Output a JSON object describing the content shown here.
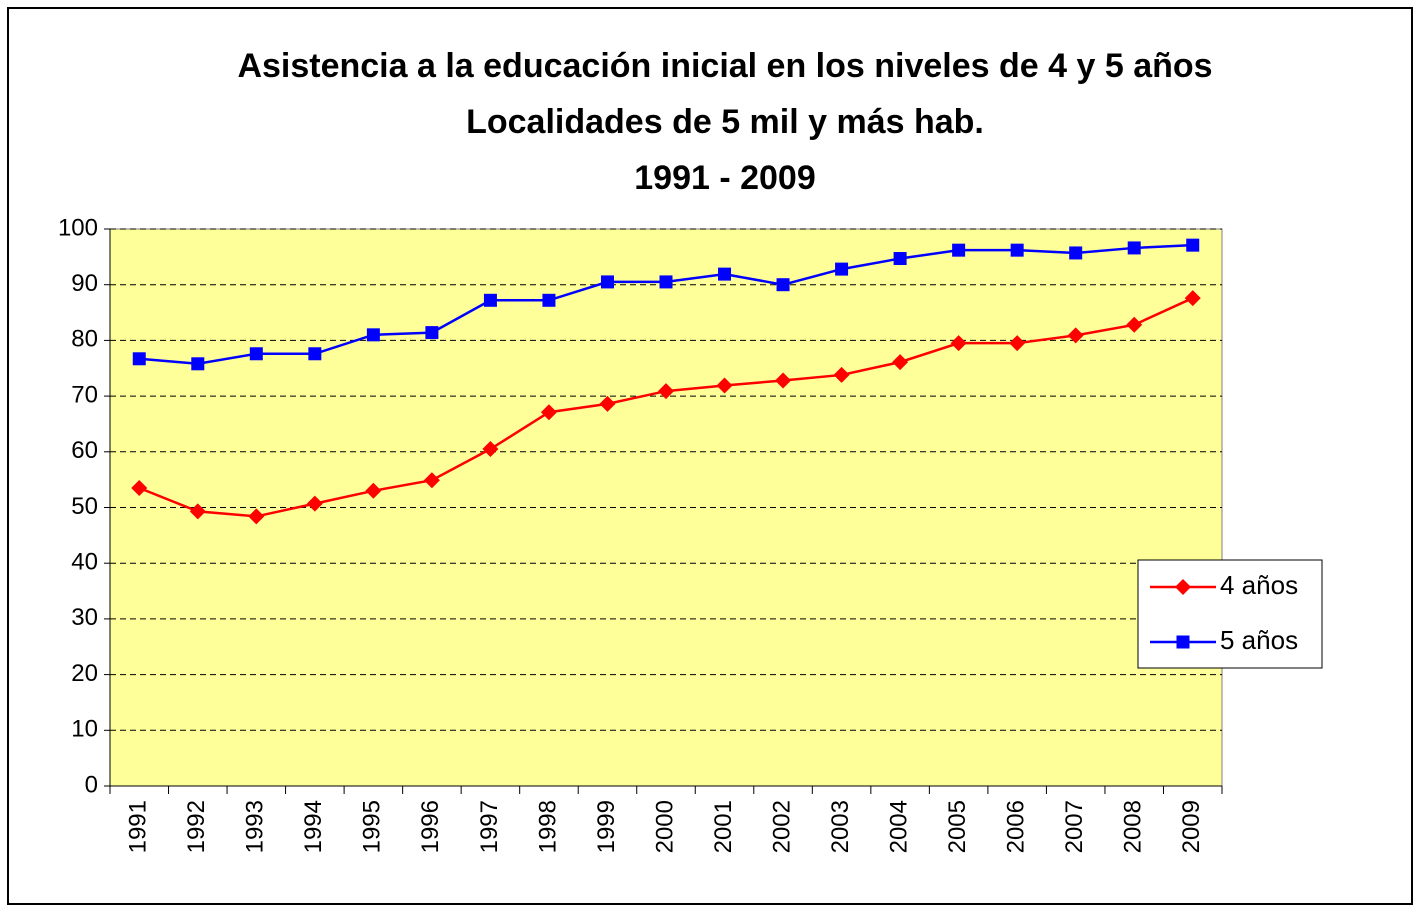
{
  "chart_data": {
    "type": "line",
    "title": [
      "Asistencia a la educación inicial en los niveles de 4 y 5 años",
      "Localidades de 5 mil y más hab.",
      "1991 - 2009"
    ],
    "categories": [
      "1991",
      "1992",
      "1993",
      "1994",
      "1995",
      "1996",
      "1997",
      "1998",
      "1999",
      "2000",
      "2001",
      "2002",
      "2003",
      "2004",
      "2005",
      "2006",
      "2007",
      "2008",
      "2009"
    ],
    "series": [
      {
        "name": "4 años",
        "color": "#ff0000",
        "marker": "diamond",
        "values": [
          53.5,
          49.3,
          48.4,
          50.7,
          53.0,
          54.9,
          60.5,
          67.1,
          68.6,
          70.9,
          71.9,
          72.8,
          73.8,
          76.1,
          79.5,
          79.5,
          80.9,
          82.8,
          87.6
        ]
      },
      {
        "name": "5 años",
        "color": "#0000ff",
        "marker": "square",
        "values": [
          76.7,
          75.8,
          77.6,
          77.6,
          81.0,
          81.4,
          87.2,
          87.2,
          90.5,
          90.5,
          91.9,
          90.0,
          92.8,
          94.7,
          96.2,
          96.2,
          95.7,
          96.6,
          97.1
        ]
      }
    ],
    "ylim": [
      0,
      100
    ],
    "yticks": [
      0,
      10,
      20,
      30,
      40,
      50,
      60,
      70,
      80,
      90,
      100
    ],
    "grid": true,
    "plot_background": "#ffff99",
    "legend": "right"
  }
}
